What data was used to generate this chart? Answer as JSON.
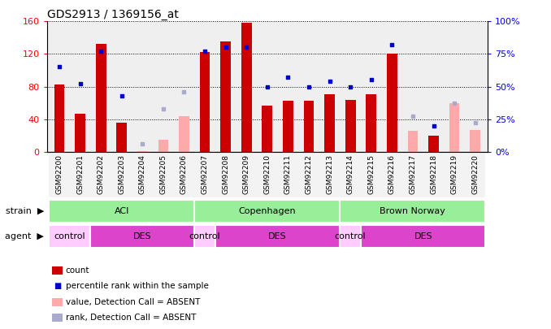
{
  "title": "GDS2913 / 1369156_at",
  "samples": [
    "GSM92200",
    "GSM92201",
    "GSM92202",
    "GSM92203",
    "GSM92204",
    "GSM92205",
    "GSM92206",
    "GSM92207",
    "GSM92208",
    "GSM92209",
    "GSM92210",
    "GSM92211",
    "GSM92212",
    "GSM92213",
    "GSM92214",
    "GSM92215",
    "GSM92216",
    "GSM92217",
    "GSM92218",
    "GSM92219",
    "GSM92220"
  ],
  "count": [
    83,
    47,
    132,
    36,
    null,
    null,
    null,
    122,
    135,
    158,
    57,
    63,
    63,
    71,
    64,
    71,
    120,
    null,
    20,
    null,
    null
  ],
  "rank": [
    65,
    52,
    77,
    43,
    null,
    null,
    null,
    77,
    80,
    80,
    50,
    57,
    50,
    54,
    50,
    55,
    82,
    null,
    20,
    null,
    null
  ],
  "absent_count": [
    null,
    null,
    null,
    null,
    1,
    15,
    44,
    null,
    null,
    null,
    null,
    null,
    null,
    null,
    null,
    null,
    null,
    26,
    null,
    60,
    27
  ],
  "absent_rank": [
    null,
    null,
    null,
    null,
    6,
    33,
    46,
    null,
    null,
    null,
    null,
    null,
    null,
    null,
    null,
    null,
    null,
    27,
    null,
    37,
    22
  ],
  "ylim_left": [
    0,
    160
  ],
  "ylim_right": [
    0,
    100
  ],
  "yticks_left": [
    0,
    40,
    80,
    120,
    160
  ],
  "yticks_right": [
    0,
    25,
    50,
    75,
    100
  ],
  "color_count": "#cc0000",
  "color_rank": "#0000cc",
  "color_absent_count": "#ffaaaa",
  "color_absent_rank": "#aaaacc",
  "strain_groups": [
    {
      "label": "ACI",
      "start": 0,
      "end": 6
    },
    {
      "label": "Copenhagen",
      "start": 7,
      "end": 13
    },
    {
      "label": "Brown Norway",
      "start": 14,
      "end": 20
    }
  ],
  "agent_groups": [
    {
      "label": "control",
      "start": 0,
      "end": 1,
      "color": "#ffccff"
    },
    {
      "label": "DES",
      "start": 2,
      "end": 6,
      "color": "#dd44cc"
    },
    {
      "label": "control",
      "start": 7,
      "end": 7,
      "color": "#ffccff"
    },
    {
      "label": "DES",
      "start": 8,
      "end": 13,
      "color": "#dd44cc"
    },
    {
      "label": "control",
      "start": 14,
      "end": 14,
      "color": "#ffccff"
    },
    {
      "label": "DES",
      "start": 15,
      "end": 20,
      "color": "#dd44cc"
    }
  ],
  "strain_bg_color": "#99ee99",
  "bar_width": 0.5
}
